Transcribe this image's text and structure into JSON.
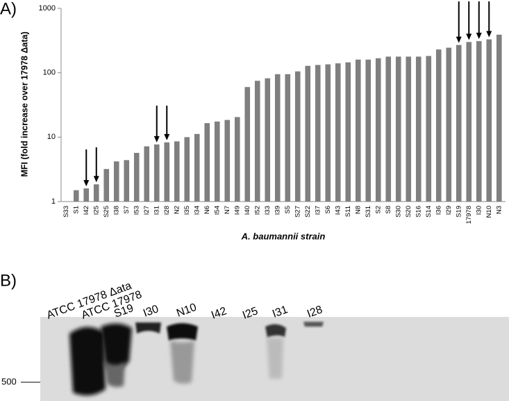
{
  "chart_data": {
    "type": "bar",
    "panel_label": "A)",
    "ylabel": "MFI (fold increase over 17978 Δata)",
    "xlabel": "A. baumannii strain",
    "categories": [
      "S33",
      "S1",
      "I42",
      "I25",
      "S25",
      "I38",
      "S7",
      "I53",
      "I27",
      "I31",
      "I28",
      "N2",
      "I35",
      "I34",
      "N6",
      "I54",
      "N7",
      "I49",
      "I40",
      "I52",
      "I33",
      "I39",
      "S5",
      "S27",
      "S22",
      "I37",
      "S6",
      "I43",
      "S11",
      "N8",
      "S31",
      "S2",
      "S8",
      "S30",
      "S20",
      "S16",
      "S14",
      "I36",
      "I29",
      "S19",
      "17978",
      "I30",
      "N10",
      "N3"
    ],
    "values": [
      1,
      1.5,
      1.6,
      1.85,
      3.2,
      4.2,
      4.4,
      5.7,
      7.2,
      7.7,
      8.3,
      8.6,
      10,
      11.2,
      16.5,
      17.5,
      18.5,
      20.5,
      60,
      75,
      82,
      95,
      95,
      105,
      128,
      132,
      135,
      140,
      145,
      160,
      160,
      168,
      178,
      178,
      178,
      178,
      182,
      230,
      245,
      270,
      300,
      310,
      330,
      390
    ],
    "color": "#7f7f7f",
    "log_scale": true,
    "ylim": [
      1,
      1000
    ],
    "yticks": [
      1,
      10,
      100,
      1000
    ],
    "grid": false
  },
  "blot": {
    "panel_label": "B)",
    "lanes": [
      "ATCC 17978 Δata",
      "ATCC 17978",
      "S19",
      "I30",
      "N10",
      "I42",
      "I25",
      "I31",
      "I28"
    ],
    "marker": "500"
  }
}
